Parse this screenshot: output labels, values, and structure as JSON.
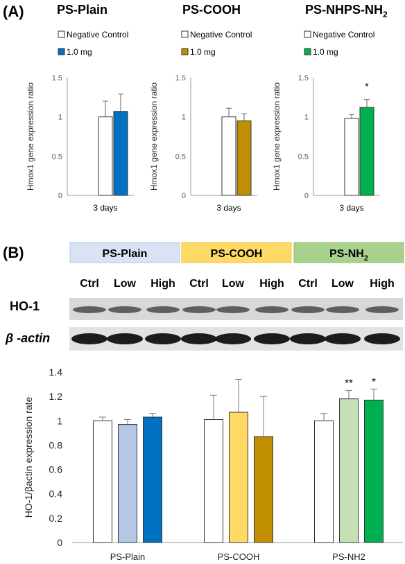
{
  "panel_a": {
    "letter": "(A)",
    "axis_ylabel": "Hmox1 gene expression ratio",
    "x_category": "3 days",
    "legend_control": "Negative Control",
    "legend_treat": "1.0 mg",
    "yticks": [
      "0",
      "0.5",
      "1",
      "1.5"
    ]
  },
  "panel_b": {
    "letter": "(B)",
    "bands": [
      "PS-Plain",
      "PS-COOH",
      "PS-NH"
    ],
    "band_sub": "2",
    "lanes": [
      "Ctrl",
      "Low",
      "High",
      "Ctrl",
      "Low",
      "High",
      "Ctrl",
      "Low",
      "High"
    ],
    "blot_labels": [
      "HO-1",
      "β -actin"
    ],
    "yticks": [
      "0",
      "0.2",
      "0.4",
      "0.6",
      "0.8",
      "1",
      "1.2",
      "1.4"
    ]
  },
  "chart_data": [
    {
      "type": "bar",
      "title": "PS-Plain",
      "ylabel": "Hmox1 gene expression ratio",
      "xlabel": "",
      "categories": [
        "3 days"
      ],
      "ylim": [
        0,
        1.5
      ],
      "series": [
        {
          "name": "Negative Control",
          "values": [
            1.0
          ],
          "error": [
            0.2
          ],
          "color": "#ffffff"
        },
        {
          "name": "1.0 mg",
          "values": [
            1.07
          ],
          "error": [
            0.22
          ],
          "color": "#0070c0"
        }
      ],
      "annotations": []
    },
    {
      "type": "bar",
      "title": "PS-COOH",
      "ylabel": "Hmox1 gene expression ratio",
      "xlabel": "",
      "categories": [
        "3 days"
      ],
      "ylim": [
        0,
        1.5
      ],
      "series": [
        {
          "name": "Negative Control",
          "values": [
            1.0
          ],
          "error": [
            0.11
          ],
          "color": "#ffffff"
        },
        {
          "name": "1.0 mg",
          "values": [
            0.95
          ],
          "error": [
            0.09
          ],
          "color": "#bf8f00"
        }
      ],
      "annotations": []
    },
    {
      "type": "bar",
      "title": "PS-NH",
      "title_sub": "2",
      "ylabel": "Hmox1 gene expression ratio",
      "xlabel": "",
      "categories": [
        "3 days"
      ],
      "ylim": [
        0,
        1.5
      ],
      "series": [
        {
          "name": "Negative Control",
          "values": [
            0.98
          ],
          "error": [
            0.05
          ],
          "color": "#ffffff"
        },
        {
          "name": "1.0 mg",
          "values": [
            1.12
          ],
          "error": [
            0.1
          ],
          "color": "#00b050"
        }
      ],
      "annotations": [
        {
          "series": 1,
          "category": 0,
          "text": "*"
        }
      ]
    },
    {
      "type": "bar",
      "title": "",
      "ylabel": "HO-1/βactin expression rate",
      "xlabel": "",
      "categories": [
        "PS-Plain",
        "PS-COOH",
        "PS-NH2"
      ],
      "ylim": [
        0,
        1.4
      ],
      "groups": [
        {
          "values": [
            1.0,
            0.97,
            1.03
          ],
          "errors": [
            0.03,
            0.04,
            0.03
          ],
          "colors": [
            "#ffffff",
            "#b4c7e7",
            "#0070c0"
          ],
          "stars": [
            "",
            "",
            ""
          ]
        },
        {
          "values": [
            1.01,
            1.07,
            0.87
          ],
          "errors": [
            0.2,
            0.27,
            0.33
          ],
          "colors": [
            "#ffffff",
            "#ffd966",
            "#bf8f00"
          ],
          "stars": [
            "",
            "",
            ""
          ]
        },
        {
          "values": [
            1.0,
            1.18,
            1.17
          ],
          "errors": [
            0.06,
            0.07,
            0.09
          ],
          "colors": [
            "#ffffff",
            "#c5e0b4",
            "#00b050"
          ],
          "stars": [
            "",
            "**",
            "*"
          ]
        }
      ]
    }
  ]
}
